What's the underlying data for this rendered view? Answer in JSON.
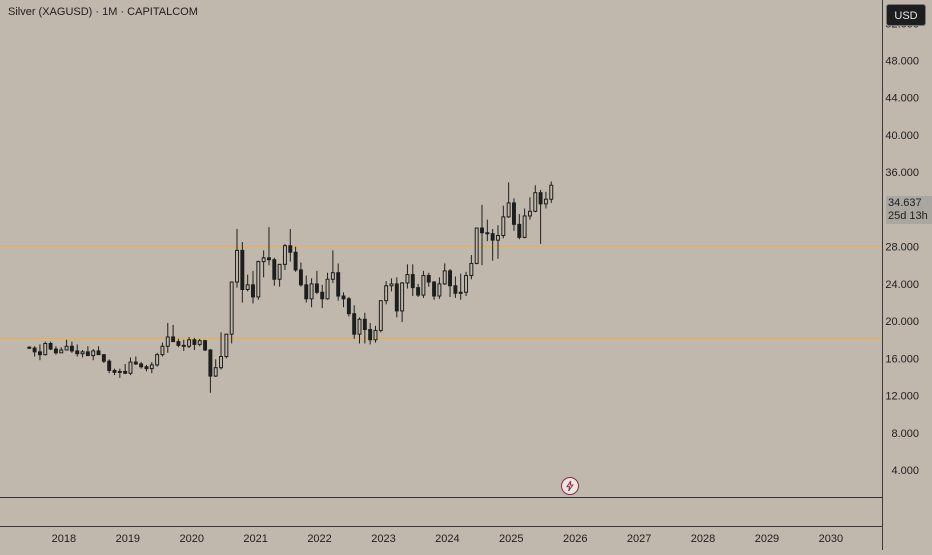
{
  "header": {
    "title": "Silver (XAGUSD) · 1M · CAPITALCOM",
    "currency": "USD"
  },
  "current_price": {
    "value": "34.637",
    "countdown": "25d 13h"
  },
  "colors": {
    "background": "#c0b8ac",
    "candle": "#1e1e1e",
    "level_line": "#f0b040",
    "axis_line": "#3a3a3a",
    "text": "#1e1e1e",
    "accent": "#8a2a4e"
  },
  "icons": {
    "bolt": "lightning-bolt-icon"
  },
  "chart_data": {
    "type": "candlestick",
    "title": "Silver (XAGUSD) · 1M · CAPITALCOM",
    "xlabel": "",
    "ylabel": "",
    "xlim": [
      2017.0,
      2030.8
    ],
    "ylim": [
      1.0,
      54.5
    ],
    "x_ticks": [
      "2018",
      "2019",
      "2020",
      "2021",
      "2022",
      "2023",
      "2024",
      "2025",
      "2026",
      "2027",
      "2028",
      "2029",
      "2030"
    ],
    "y_ticks": [
      "4.000",
      "8.000",
      "12.000",
      "16.000",
      "20.000",
      "24.000",
      "28.000",
      "32.000",
      "36.000",
      "40.000",
      "44.000",
      "48.000",
      "52.000"
    ],
    "horizontal_levels": [
      28.1,
      18.2
    ],
    "grid": false,
    "start": "2017-06",
    "interval": "1M",
    "ohlc": [
      [
        17.2,
        17.3,
        17.0,
        17.1
      ],
      [
        17.1,
        17.3,
        16.2,
        16.7
      ],
      [
        16.7,
        17.5,
        15.8,
        16.4
      ],
      [
        16.4,
        17.8,
        16.3,
        17.6
      ],
      [
        17.6,
        17.8,
        16.9,
        17.0
      ],
      [
        17.0,
        17.3,
        16.4,
        16.6
      ],
      [
        16.6,
        17.2,
        16.6,
        16.9
      ],
      [
        16.9,
        18.0,
        16.9,
        17.3
      ],
      [
        17.3,
        17.8,
        16.6,
        16.8
      ],
      [
        16.8,
        17.5,
        16.2,
        16.5
      ],
      [
        16.5,
        16.9,
        16.1,
        16.7
      ],
      [
        16.7,
        17.3,
        16.4,
        16.3
      ],
      [
        16.3,
        17.0,
        15.8,
        16.8
      ],
      [
        16.8,
        17.3,
        16.4,
        16.4
      ],
      [
        16.4,
        16.4,
        15.5,
        15.7
      ],
      [
        15.7,
        15.9,
        14.4,
        14.7
      ],
      [
        14.7,
        14.9,
        14.2,
        14.5
      ],
      [
        14.5,
        14.9,
        13.9,
        14.6
      ],
      [
        14.6,
        15.4,
        14.3,
        14.4
      ],
      [
        14.4,
        16.1,
        14.2,
        15.6
      ],
      [
        15.6,
        16.2,
        15.3,
        15.4
      ],
      [
        15.4,
        15.6,
        14.9,
        15.1
      ],
      [
        15.1,
        15.3,
        14.6,
        14.9
      ],
      [
        14.9,
        15.6,
        14.4,
        15.3
      ],
      [
        15.3,
        16.6,
        15.1,
        16.4
      ],
      [
        16.4,
        17.7,
        16.2,
        17.3
      ],
      [
        17.3,
        19.8,
        16.6,
        18.3
      ],
      [
        18.3,
        19.6,
        17.8,
        17.8
      ],
      [
        17.8,
        18.1,
        17.2,
        17.4
      ],
      [
        17.4,
        18.0,
        16.8,
        17.3
      ],
      [
        17.3,
        18.3,
        17.1,
        18.0
      ],
      [
        18.0,
        18.2,
        16.9,
        17.5
      ],
      [
        17.5,
        18.1,
        17.3,
        17.9
      ],
      [
        17.9,
        18.0,
        16.8,
        16.9
      ],
      [
        16.9,
        17.0,
        12.3,
        14.1
      ],
      [
        14.1,
        15.9,
        14.0,
        15.0
      ],
      [
        15.0,
        18.8,
        14.8,
        16.2
      ],
      [
        16.2,
        18.6,
        16.0,
        18.6
      ],
      [
        18.6,
        24.2,
        17.6,
        24.2
      ],
      [
        24.2,
        29.9,
        23.6,
        27.6
      ],
      [
        27.6,
        28.5,
        22.0,
        23.4
      ],
      [
        23.4,
        25.0,
        23.2,
        23.9
      ],
      [
        23.9,
        25.4,
        21.9,
        22.6
      ],
      [
        22.6,
        26.5,
        22.3,
        26.4
      ],
      [
        26.4,
        27.6,
        24.7,
        26.8
      ],
      [
        26.8,
        30.1,
        26.0,
        26.6
      ],
      [
        26.6,
        26.8,
        23.8,
        24.5
      ],
      [
        24.5,
        26.1,
        23.7,
        26.1
      ],
      [
        26.1,
        28.3,
        25.5,
        28.1
      ],
      [
        28.1,
        29.9,
        26.4,
        27.4
      ],
      [
        27.4,
        28.0,
        25.3,
        25.5
      ],
      [
        25.5,
        26.3,
        23.7,
        23.9
      ],
      [
        23.9,
        24.9,
        22.0,
        22.4
      ],
      [
        22.4,
        24.6,
        21.5,
        24.0
      ],
      [
        24.0,
        25.4,
        22.9,
        23.1
      ],
      [
        23.1,
        23.9,
        21.4,
        22.4
      ],
      [
        22.4,
        25.2,
        22.3,
        24.5
      ],
      [
        24.5,
        27.6,
        24.1,
        25.2
      ],
      [
        25.2,
        26.2,
        22.2,
        22.7
      ],
      [
        22.7,
        23.1,
        21.5,
        22.4
      ],
      [
        22.4,
        22.6,
        20.5,
        20.8
      ],
      [
        20.8,
        21.7,
        18.1,
        18.6
      ],
      [
        18.6,
        20.4,
        17.6,
        20.2
      ],
      [
        20.2,
        20.9,
        17.6,
        19.1
      ],
      [
        19.1,
        19.8,
        17.5,
        18.0
      ],
      [
        18.0,
        19.5,
        17.7,
        19.0
      ],
      [
        19.0,
        22.2,
        18.8,
        22.2
      ],
      [
        22.2,
        24.3,
        21.8,
        23.8
      ],
      [
        23.8,
        24.6,
        23.2,
        24.0
      ],
      [
        24.0,
        24.7,
        20.4,
        21.1
      ],
      [
        21.1,
        24.2,
        19.9,
        24.1
      ],
      [
        24.1,
        26.1,
        23.5,
        25.0
      ],
      [
        25.0,
        26.1,
        22.7,
        23.6
      ],
      [
        23.6,
        24.0,
        22.6,
        22.8
      ],
      [
        22.8,
        25.4,
        22.5,
        24.9
      ],
      [
        24.9,
        25.2,
        23.7,
        24.2
      ],
      [
        24.2,
        24.3,
        22.3,
        22.7
      ],
      [
        22.7,
        24.7,
        22.4,
        24.0
      ],
      [
        24.0,
        26.2,
        23.9,
        25.4
      ],
      [
        25.4,
        25.6,
        22.6,
        23.8
      ],
      [
        23.8,
        24.8,
        22.5,
        23.0
      ],
      [
        23.0,
        25.1,
        22.3,
        23.1
      ],
      [
        23.1,
        25.3,
        22.7,
        24.9
      ],
      [
        24.9,
        27.1,
        24.5,
        26.2
      ],
      [
        26.2,
        30.0,
        26.1,
        30.0
      ],
      [
        30.0,
        32.5,
        26.0,
        29.5
      ],
      [
        29.5,
        30.9,
        28.6,
        29.4
      ],
      [
        29.4,
        29.9,
        26.5,
        28.7
      ],
      [
        28.7,
        30.3,
        26.7,
        29.2
      ],
      [
        29.2,
        32.4,
        28.9,
        31.2
      ],
      [
        31.2,
        34.9,
        31.1,
        32.7
      ],
      [
        32.7,
        33.2,
        29.7,
        30.4
      ],
      [
        30.4,
        31.5,
        28.8,
        29.0
      ],
      [
        29.0,
        32.1,
        28.9,
        31.3
      ],
      [
        31.3,
        33.3,
        30.9,
        31.8
      ],
      [
        31.8,
        34.6,
        31.7,
        33.8
      ],
      [
        33.8,
        34.1,
        28.3,
        32.6
      ],
      [
        32.6,
        33.9,
        32.1,
        33.1
      ],
      [
        33.1,
        35.0,
        32.7,
        34.6
      ]
    ]
  }
}
